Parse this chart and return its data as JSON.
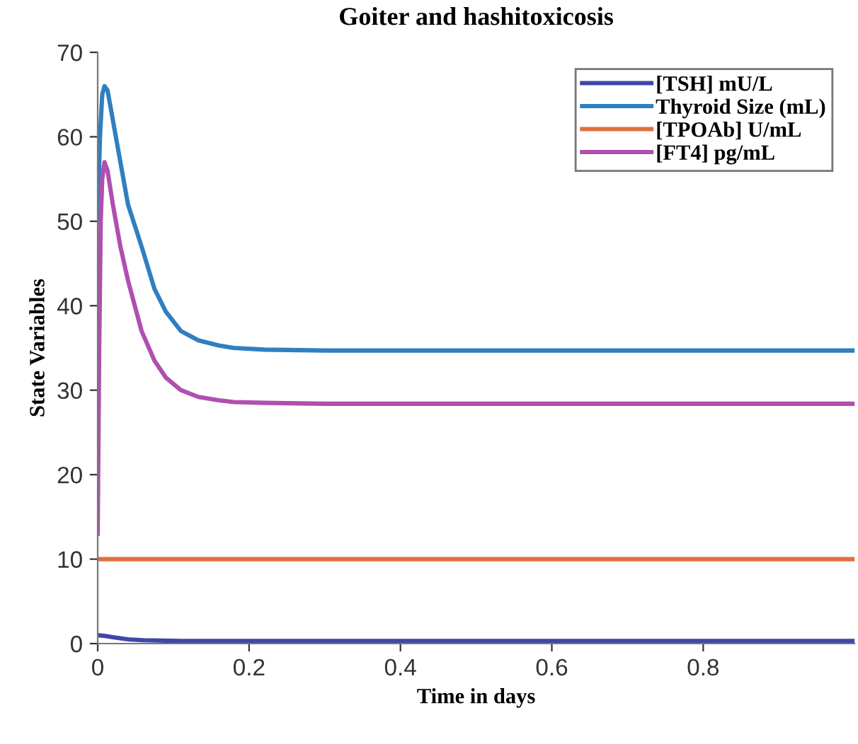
{
  "chart_data": {
    "type": "line",
    "title": "Goiter and hashitoxicosis",
    "xlabel": "Time in days",
    "ylabel": "State Variables",
    "xlim": [
      0,
      1
    ],
    "xticks": [
      0,
      0.2,
      0.4,
      0.6,
      0.8
    ],
    "ylim": [
      0,
      70
    ],
    "yticks": [
      0,
      10,
      20,
      30,
      40,
      50,
      60,
      70
    ],
    "grid": false,
    "legend": "top right",
    "marker": "none",
    "line_style": "solid",
    "series": [
      {
        "name": "[TSH] mU/L",
        "color": "#3f47a8",
        "x": [
          0,
          0.01,
          0.02,
          0.04,
          0.06,
          0.1,
          0.2,
          0.5,
          1.0
        ],
        "values": [
          1.0,
          0.9,
          0.75,
          0.5,
          0.4,
          0.32,
          0.3,
          0.3,
          0.3
        ]
      },
      {
        "name": "Thyroid Size (mL)",
        "color": "#2f7fc1",
        "x": [
          0,
          0.003,
          0.006,
          0.009,
          0.013,
          0.02,
          0.03,
          0.04,
          0.058,
          0.075,
          0.09,
          0.11,
          0.133,
          0.16,
          0.18,
          0.22,
          0.3,
          0.5,
          1.0
        ],
        "values": [
          50,
          60,
          65,
          66,
          65.5,
          62,
          57,
          52,
          47,
          42,
          39.3,
          37,
          35.9,
          35.3,
          35,
          34.8,
          34.7,
          34.7,
          34.7
        ]
      },
      {
        "name": "[TPOAb] U/mL",
        "color": "#e0703f",
        "x": [
          0,
          0.5,
          1.0
        ],
        "values": [
          10,
          10,
          10
        ]
      },
      {
        "name": "[FT4] pg/mL",
        "color": "#b04fb0",
        "x": [
          0,
          0.002,
          0.004,
          0.006,
          0.009,
          0.013,
          0.02,
          0.03,
          0.04,
          0.058,
          0.075,
          0.09,
          0.11,
          0.133,
          0.16,
          0.18,
          0.22,
          0.3,
          0.5,
          1.0
        ],
        "values": [
          13,
          35,
          50,
          55,
          57,
          56,
          52,
          47,
          43,
          37,
          33.5,
          31.5,
          30,
          29.2,
          28.8,
          28.6,
          28.5,
          28.4,
          28.4,
          28.4
        ]
      }
    ]
  }
}
